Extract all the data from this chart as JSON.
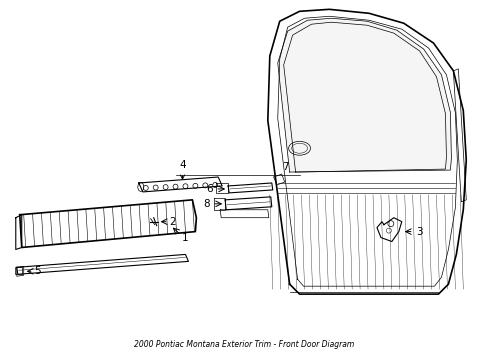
{
  "title": "2000 Pontiac Montana Exterior Trim - Front Door Diagram",
  "bg_color": "#ffffff",
  "line_color": "#000000",
  "fig_width": 4.89,
  "fig_height": 3.6,
  "dpi": 100
}
